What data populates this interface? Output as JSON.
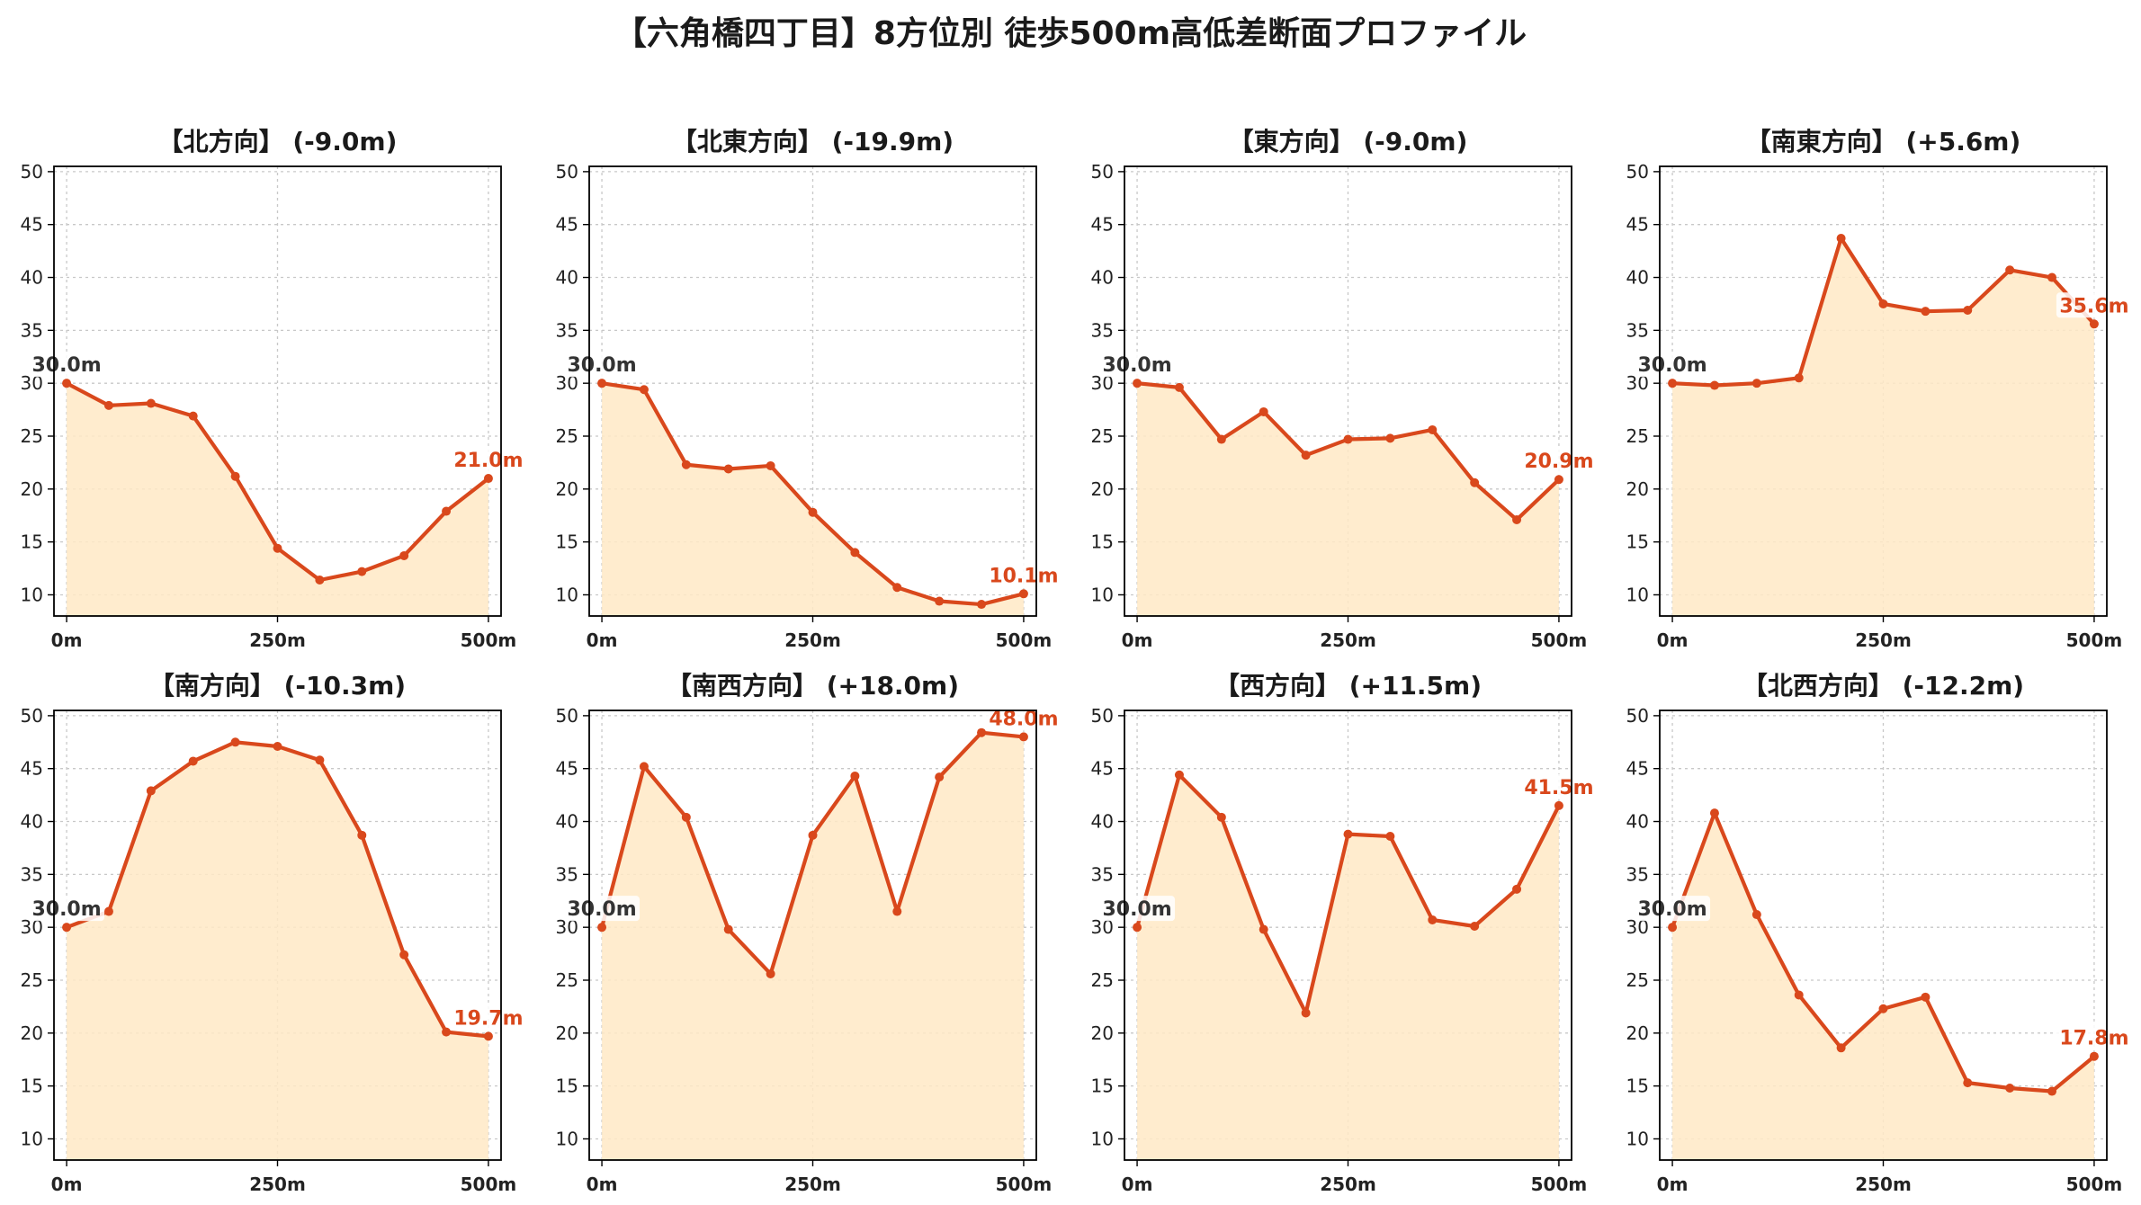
{
  "title": "【六角橋四丁目】8方位別 徒歩500m高低差断面プロファイル",
  "chart_data": [
    {
      "type": "line",
      "title": "【北方向】 (-9.0m)",
      "x": [
        0,
        50,
        100,
        150,
        200,
        250,
        300,
        350,
        400,
        450,
        500
      ],
      "values": [
        30.0,
        27.9,
        28.1,
        26.9,
        21.2,
        14.4,
        11.4,
        12.2,
        13.7,
        17.9,
        21.0
      ],
      "start_label": "30.0m",
      "end_label": "21.0m",
      "xticks": [
        "0m",
        "250m",
        "500m"
      ],
      "yticks": [
        "10",
        "15",
        "20",
        "25",
        "30",
        "35",
        "40",
        "45",
        "50"
      ],
      "xlim": [
        -15,
        515
      ],
      "ylim": [
        8,
        50.5
      ],
      "grid": true
    },
    {
      "type": "line",
      "title": "【北東方向】 (-19.9m)",
      "x": [
        0,
        50,
        100,
        150,
        200,
        250,
        300,
        350,
        400,
        450,
        500
      ],
      "values": [
        30.0,
        29.4,
        22.3,
        21.9,
        22.2,
        17.8,
        14.0,
        10.7,
        9.4,
        9.1,
        10.1
      ],
      "start_label": "30.0m",
      "end_label": "10.1m",
      "xticks": [
        "0m",
        "250m",
        "500m"
      ],
      "yticks": [
        "10",
        "15",
        "20",
        "25",
        "30",
        "35",
        "40",
        "45",
        "50"
      ],
      "xlim": [
        -15,
        515
      ],
      "ylim": [
        8,
        50.5
      ],
      "grid": true
    },
    {
      "type": "line",
      "title": "【東方向】 (-9.0m)",
      "x": [
        0,
        50,
        100,
        150,
        200,
        250,
        300,
        350,
        400,
        450,
        500
      ],
      "values": [
        30.0,
        29.6,
        24.7,
        27.3,
        23.2,
        24.7,
        24.8,
        25.6,
        20.6,
        17.1,
        20.9
      ],
      "start_label": "30.0m",
      "end_label": "20.9m",
      "xticks": [
        "0m",
        "250m",
        "500m"
      ],
      "yticks": [
        "10",
        "15",
        "20",
        "25",
        "30",
        "35",
        "40",
        "45",
        "50"
      ],
      "xlim": [
        -15,
        515
      ],
      "ylim": [
        8,
        50.5
      ],
      "grid": true
    },
    {
      "type": "line",
      "title": "【南東方向】 (+5.6m)",
      "x": [
        0,
        50,
        100,
        150,
        200,
        250,
        300,
        350,
        400,
        450,
        500
      ],
      "values": [
        30.0,
        29.8,
        30.0,
        30.5,
        43.7,
        37.5,
        36.8,
        36.9,
        40.7,
        40.0,
        35.6
      ],
      "start_label": "30.0m",
      "end_label": "35.6m",
      "xticks": [
        "0m",
        "250m",
        "500m"
      ],
      "yticks": [
        "10",
        "15",
        "20",
        "25",
        "30",
        "35",
        "40",
        "45",
        "50"
      ],
      "xlim": [
        -15,
        515
      ],
      "ylim": [
        8,
        50.5
      ],
      "grid": true
    },
    {
      "type": "line",
      "title": "【南方向】 (-10.3m)",
      "x": [
        0,
        50,
        100,
        150,
        200,
        250,
        300,
        350,
        400,
        450,
        500
      ],
      "values": [
        30.0,
        31.5,
        42.9,
        45.7,
        47.5,
        47.1,
        45.8,
        38.7,
        27.4,
        20.1,
        19.7
      ],
      "start_label": "30.0m",
      "end_label": "19.7m",
      "xticks": [
        "0m",
        "250m",
        "500m"
      ],
      "yticks": [
        "10",
        "15",
        "20",
        "25",
        "30",
        "35",
        "40",
        "45",
        "50"
      ],
      "xlim": [
        -15,
        515
      ],
      "ylim": [
        8,
        50.5
      ],
      "grid": true
    },
    {
      "type": "line",
      "title": "【南西方向】 (+18.0m)",
      "x": [
        0,
        50,
        100,
        150,
        200,
        250,
        300,
        350,
        400,
        450,
        500
      ],
      "values": [
        30.0,
        45.2,
        40.4,
        29.8,
        25.6,
        38.7,
        44.3,
        31.5,
        44.2,
        48.4,
        48.0
      ],
      "start_label": "30.0m",
      "end_label": "48.0m",
      "xticks": [
        "0m",
        "250m",
        "500m"
      ],
      "yticks": [
        "10",
        "15",
        "20",
        "25",
        "30",
        "35",
        "40",
        "45",
        "50"
      ],
      "xlim": [
        -15,
        515
      ],
      "ylim": [
        8,
        50.5
      ],
      "grid": true
    },
    {
      "type": "line",
      "title": "【西方向】 (+11.5m)",
      "x": [
        0,
        50,
        100,
        150,
        200,
        250,
        300,
        350,
        400,
        450,
        500
      ],
      "values": [
        30.0,
        44.4,
        40.4,
        29.8,
        21.9,
        38.8,
        38.6,
        30.7,
        30.1,
        33.6,
        41.5
      ],
      "start_label": "30.0m",
      "end_label": "41.5m",
      "xticks": [
        "0m",
        "250m",
        "500m"
      ],
      "yticks": [
        "10",
        "15",
        "20",
        "25",
        "30",
        "35",
        "40",
        "45",
        "50"
      ],
      "xlim": [
        -15,
        515
      ],
      "ylim": [
        8,
        50.5
      ],
      "grid": true
    },
    {
      "type": "line",
      "title": "【北西方向】 (-12.2m)",
      "x": [
        0,
        50,
        100,
        150,
        200,
        250,
        300,
        350,
        400,
        450,
        500
      ],
      "values": [
        30.0,
        40.8,
        31.2,
        23.6,
        18.6,
        22.3,
        23.4,
        15.3,
        14.8,
        14.5,
        17.8
      ],
      "start_label": "30.0m",
      "end_label": "17.8m",
      "xticks": [
        "0m",
        "250m",
        "500m"
      ],
      "yticks": [
        "10",
        "15",
        "20",
        "25",
        "30",
        "35",
        "40",
        "45",
        "50"
      ],
      "xlim": [
        -15,
        515
      ],
      "ylim": [
        8,
        50.5
      ],
      "grid": true
    }
  ]
}
